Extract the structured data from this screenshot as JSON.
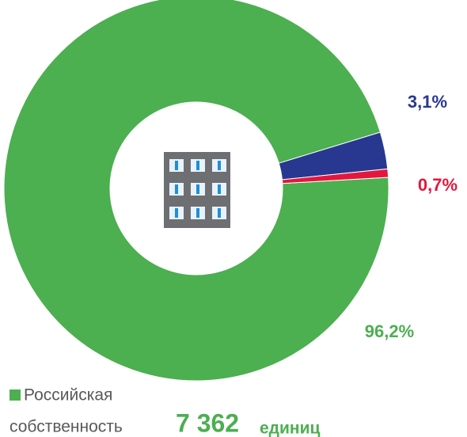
{
  "chart_data": {
    "type": "donut",
    "values": [
      96.2,
      3.1,
      0.7
    ],
    "value_labels": [
      "96,2%",
      "3,1%",
      "0,7%"
    ],
    "colors": [
      "#4caf50",
      "#283891",
      "#e3173e"
    ],
    "legend": {
      "lines": [
        "Российская",
        "собственность"
      ],
      "count": "7 362",
      "unit": "единиц"
    }
  }
}
